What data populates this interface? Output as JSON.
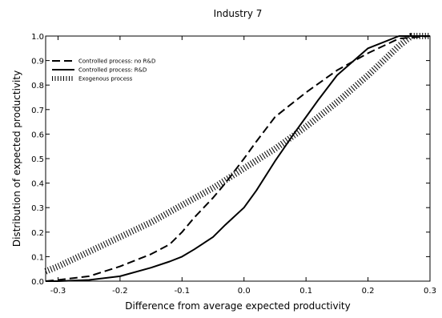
{
  "chart_data": {
    "type": "line",
    "title": "Industry 7",
    "xlabel": "Difference from average expected productivity",
    "ylabel": "Distribution of expected productivity",
    "xlim": [
      -0.32,
      0.3
    ],
    "ylim": [
      0.0,
      1.0
    ],
    "xticks": [
      -0.3,
      -0.2,
      -0.1,
      0.0,
      0.1,
      0.2,
      0.3
    ],
    "xtick_labels": [
      "-0.3",
      "-0.2",
      "-0.1",
      "0.0",
      "0.1",
      "0.2",
      "0.3"
    ],
    "yticks": [
      0.0,
      0.1,
      0.2,
      0.3,
      0.4,
      0.5,
      0.6,
      0.7,
      0.8,
      0.9,
      1.0
    ],
    "ytick_labels": [
      "0.0",
      "0.1",
      "0.2",
      "0.3",
      "0.4",
      "0.5",
      "0.6",
      "0.7",
      "0.8",
      "0.9",
      "1.0"
    ],
    "grid": false,
    "legend_position": "upper-left",
    "series": [
      {
        "name": "Controlled process: no R&D",
        "style": "dashed",
        "x": [
          -0.32,
          -0.3,
          -0.25,
          -0.2,
          -0.15,
          -0.12,
          -0.1,
          -0.08,
          -0.05,
          -0.03,
          0.0,
          0.02,
          0.05,
          0.08,
          0.1,
          0.15,
          0.2,
          0.25,
          0.3
        ],
        "y": [
          0.0,
          0.005,
          0.02,
          0.06,
          0.11,
          0.15,
          0.2,
          0.26,
          0.34,
          0.4,
          0.5,
          0.57,
          0.67,
          0.73,
          0.77,
          0.86,
          0.93,
          0.99,
          1.0
        ]
      },
      {
        "name": "Controlled process: R&D",
        "style": "solid",
        "x": [
          -0.32,
          -0.3,
          -0.25,
          -0.2,
          -0.15,
          -0.12,
          -0.1,
          -0.08,
          -0.05,
          -0.03,
          0.0,
          0.02,
          0.05,
          0.08,
          0.1,
          0.12,
          0.15,
          0.2,
          0.25,
          0.3
        ],
        "y": [
          0.0,
          0.0,
          0.005,
          0.02,
          0.055,
          0.08,
          0.1,
          0.13,
          0.18,
          0.23,
          0.3,
          0.37,
          0.49,
          0.6,
          0.67,
          0.74,
          0.84,
          0.95,
          1.0,
          1.0
        ]
      },
      {
        "name": "Exogenous process",
        "style": "dotted",
        "x": [
          -0.32,
          -0.3,
          -0.25,
          -0.2,
          -0.15,
          -0.1,
          -0.05,
          0.0,
          0.05,
          0.1,
          0.15,
          0.2,
          0.25,
          0.27,
          0.3
        ],
        "y": [
          0.04,
          0.06,
          0.12,
          0.18,
          0.24,
          0.31,
          0.38,
          0.46,
          0.54,
          0.63,
          0.73,
          0.84,
          0.96,
          1.0,
          1.0
        ]
      }
    ]
  }
}
